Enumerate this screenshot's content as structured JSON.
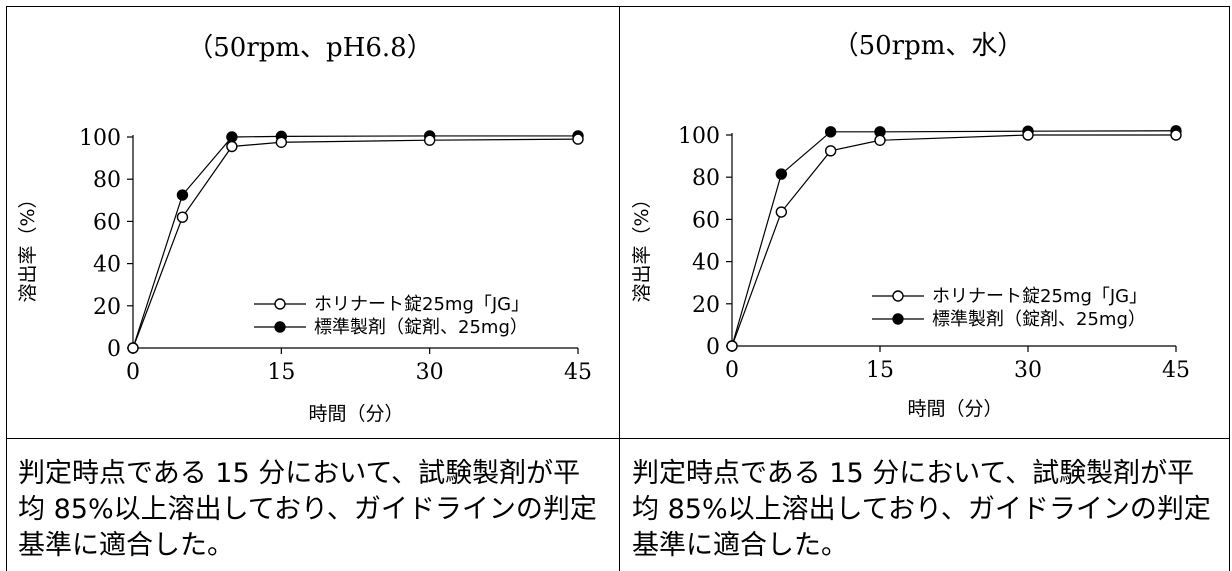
{
  "chart_data": [
    {
      "type": "line",
      "title": "（50rpm、pH6.8）",
      "xlabel": "時間（分）",
      "ylabel": "溶出率（%）",
      "xlim": [
        0,
        45
      ],
      "ylim": [
        0,
        100
      ],
      "xticks": [
        0,
        15,
        30,
        45
      ],
      "yticks": [
        0,
        20,
        40,
        60,
        80,
        100
      ],
      "grid": false,
      "legend_position": "center-right",
      "series": [
        {
          "name": "ホリナート錠25mg「JG」",
          "marker": "open-circle",
          "x": [
            0,
            5,
            10,
            15,
            30,
            45
          ],
          "y": [
            0,
            62,
            95.5,
            97.5,
            98.5,
            99
          ]
        },
        {
          "name": "標準製剤（錠剤、25mg）",
          "marker": "filled-circle",
          "x": [
            0,
            5,
            10,
            15,
            30,
            45
          ],
          "y": [
            0,
            72.5,
            100,
            100.3,
            100.5,
            100.5
          ]
        }
      ]
    },
    {
      "type": "line",
      "title": "（50rpm、水）",
      "xlabel": "時間（分）",
      "ylabel": "溶出率（%）",
      "xlim": [
        0,
        45
      ],
      "ylim": [
        0,
        100
      ],
      "xticks": [
        0,
        15,
        30,
        45
      ],
      "yticks": [
        0,
        20,
        40,
        60,
        80,
        100
      ],
      "grid": false,
      "legend_position": "center-right",
      "series": [
        {
          "name": "ホリナート錠25mg「JG」",
          "marker": "open-circle",
          "x": [
            0,
            5,
            10,
            15,
            30,
            45
          ],
          "y": [
            0,
            63.5,
            92.5,
            97.5,
            100,
            100
          ]
        },
        {
          "name": "標準製剤（錠剤、25mg）",
          "marker": "filled-circle",
          "x": [
            0,
            5,
            10,
            15,
            30,
            45
          ],
          "y": [
            0,
            81.5,
            101.5,
            101.5,
            101.8,
            102
          ]
        }
      ]
    }
  ],
  "notes": [
    "判定時点である 15 分において、試験製剤が平均 85%以上溶出しており、ガイドラインの判定基準に適合した。",
    "判定時点である 15 分において、試験製剤が平均 85%以上溶出しており、ガイドラインの判定基準に適合した。"
  ]
}
